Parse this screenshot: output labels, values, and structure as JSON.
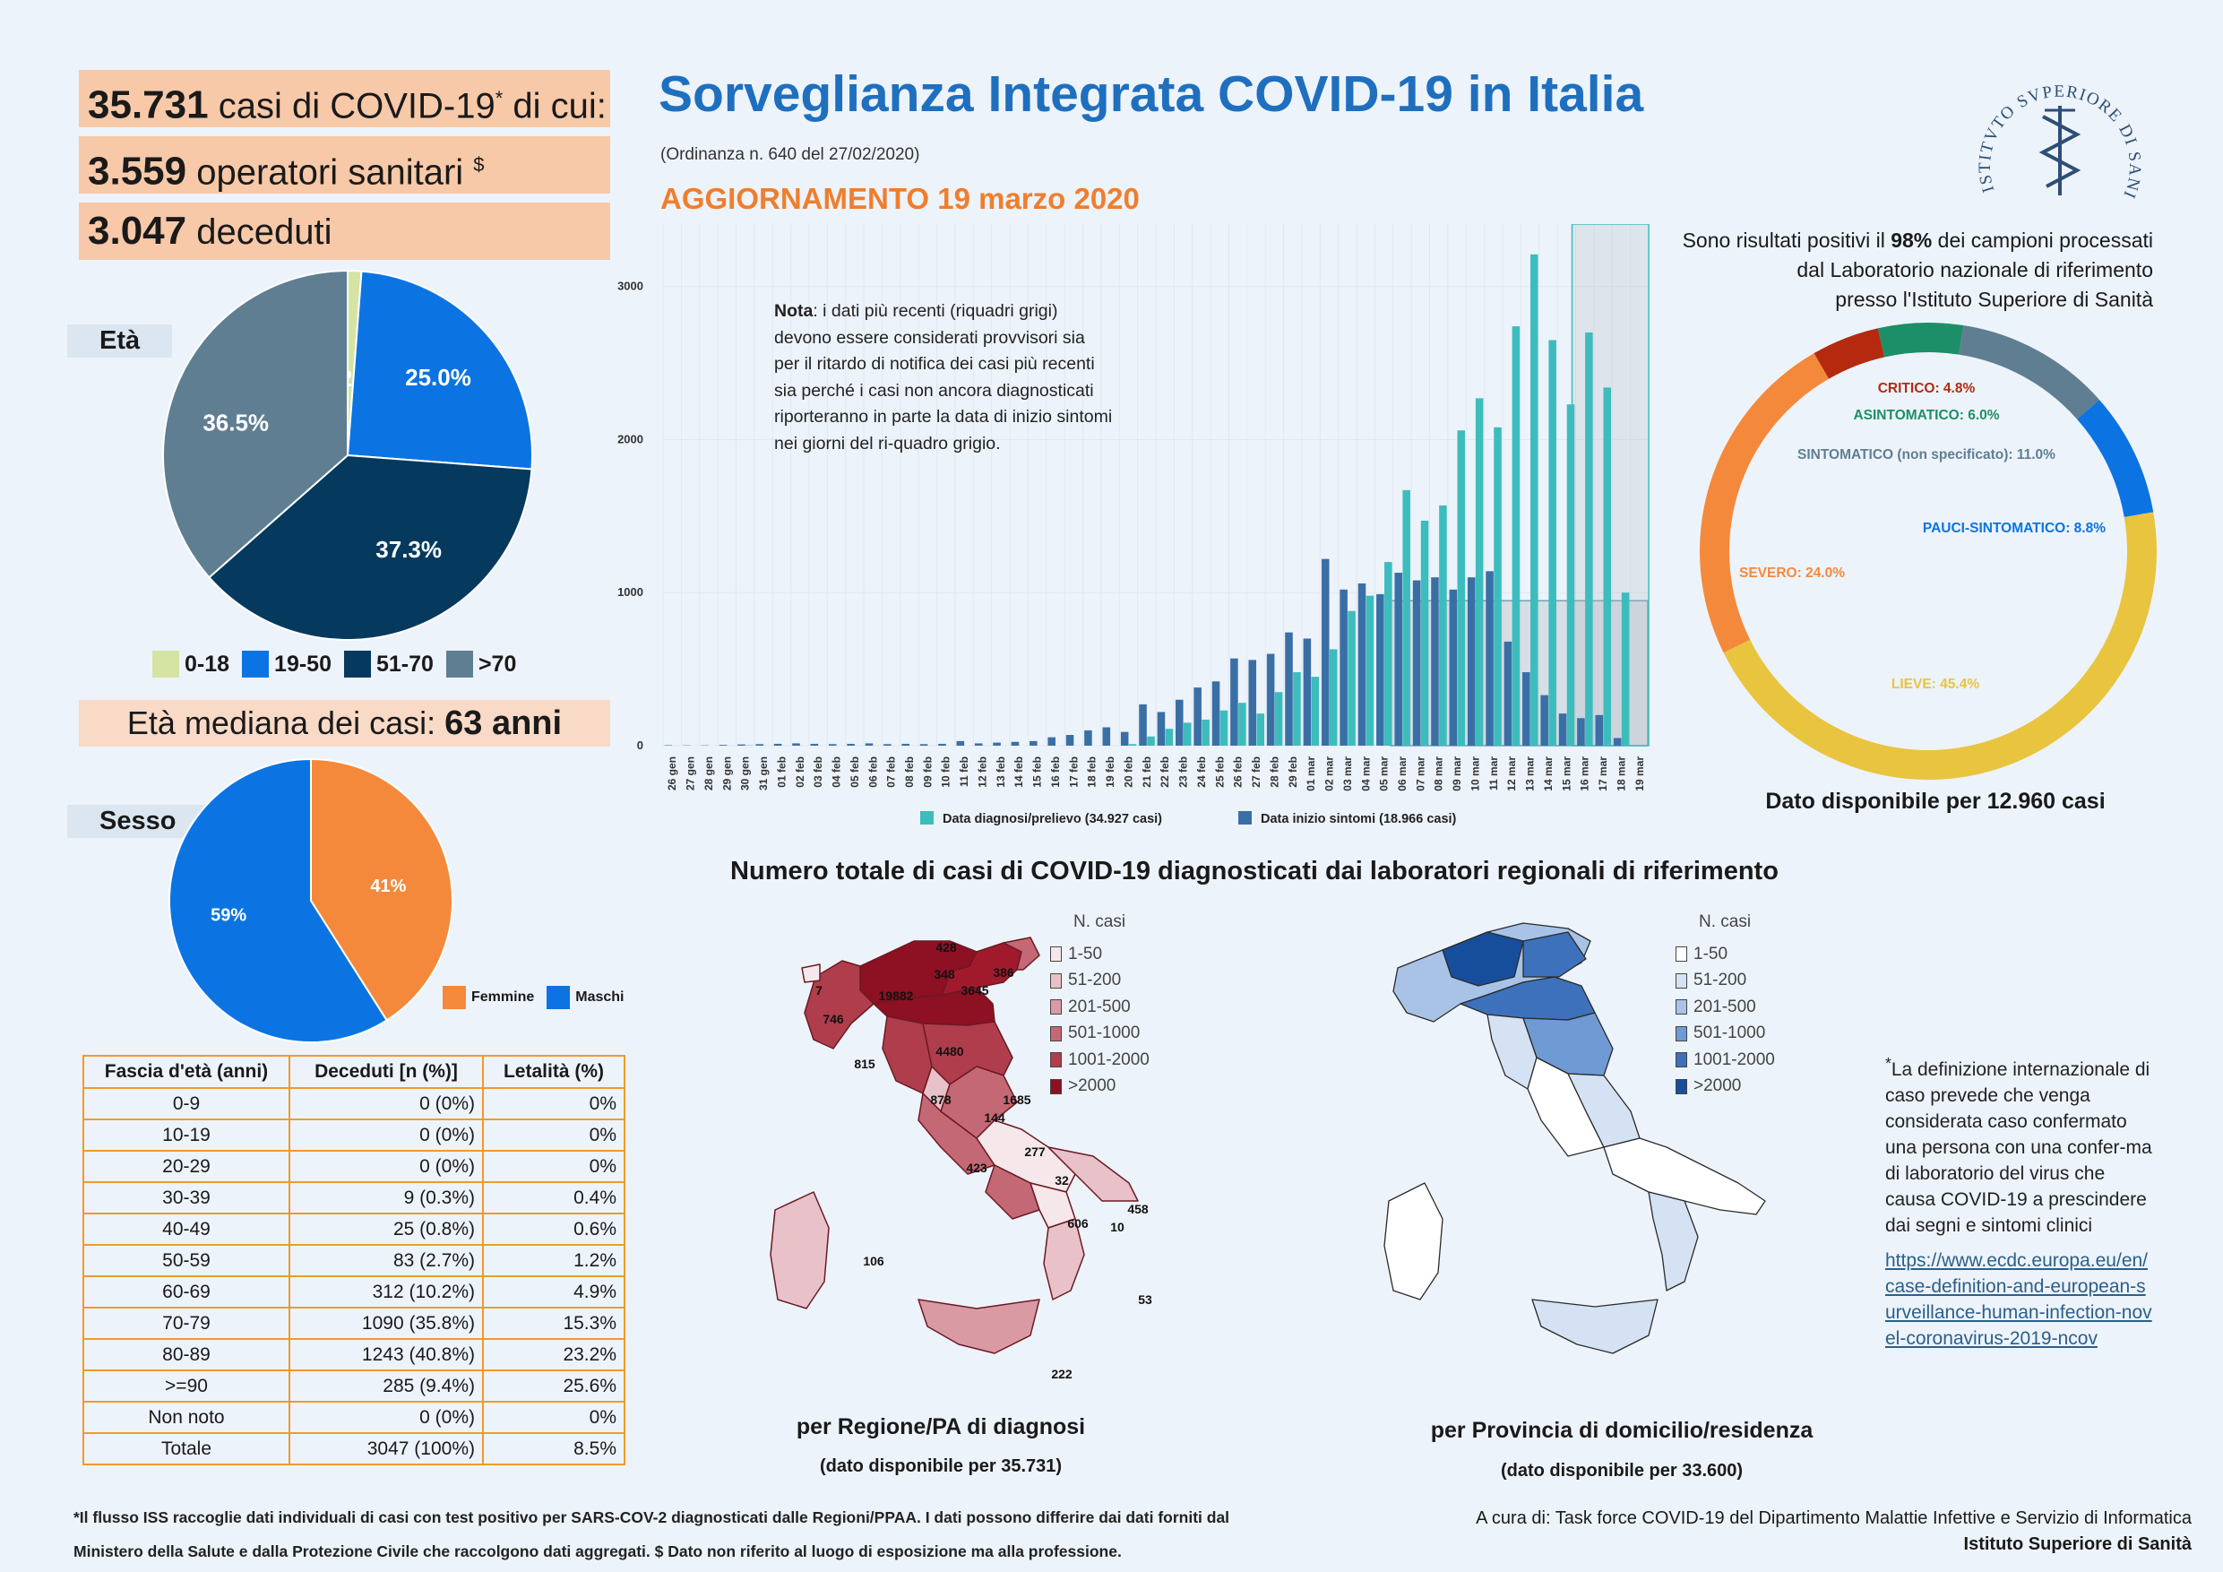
{
  "kpis": {
    "cases": {
      "value": "35.731",
      "label": "casi di COVID-19",
      "sup": "*",
      "tail": " di cui:"
    },
    "health_workers": {
      "value": "3.559",
      "label": "operatori sanitari",
      "sup": "$"
    },
    "deaths": {
      "value": "3.047",
      "label": "deceduti"
    }
  },
  "header": {
    "title": "Sorveglianza Integrata COVID-19 in Italia",
    "ordinance": "(Ordinanza n. 640 del 27/02/2020)",
    "update": "AGGIORNAMENTO 19 marzo 2020"
  },
  "age": {
    "tag": "Età",
    "median_label": "Età mediana dei casi:",
    "median_value": "63 anni"
  },
  "sex": {
    "tag": "Sesso"
  },
  "mortality_table": {
    "headers": [
      "Fascia d'età (anni)",
      "Deceduti [n (%)]",
      "Letalità (%)"
    ],
    "rows": [
      [
        "0-9",
        "0 (0%)",
        "0%"
      ],
      [
        "10-19",
        "0 (0%)",
        "0%"
      ],
      [
        "20-29",
        "0 (0%)",
        "0%"
      ],
      [
        "30-39",
        "9 (0.3%)",
        "0.4%"
      ],
      [
        "40-49",
        "25 (0.8%)",
        "0.6%"
      ],
      [
        "50-59",
        "83 (2.7%)",
        "1.2%"
      ],
      [
        "60-69",
        "312 (10.2%)",
        "4.9%"
      ],
      [
        "70-79",
        "1090 (35.8%)",
        "15.3%"
      ],
      [
        "80-89",
        "1243 (40.8%)",
        "23.2%"
      ],
      [
        ">=90",
        "285 (9.4%)",
        "25.6%"
      ],
      [
        "Non noto",
        "0 (0%)",
        "0%"
      ],
      [
        "Totale",
        "3047 (100%)",
        "8.5%"
      ]
    ]
  },
  "note": {
    "bold": "Nota",
    "text": ": i dati più recenti (riquadri grigi) devono essere considerati provvisori sia per il ritardo di notifica dei casi più recenti sia perché i casi non ancora diagnosticati riporteranno in parte la data di inizio sintomi nei giorni del ri-quadro grigio."
  },
  "lab": {
    "line1a": "Sono risultati positivi il ",
    "pct": "98%",
    "line1b": " dei campioni processati",
    "line2": "dal Laboratorio nazionale di riferimento",
    "line3": "presso l'Istituto Superiore di Sanità"
  },
  "donut_caption": "Dato disponibile per 12.960 casi",
  "maps": {
    "title": "Numero totale di casi di COVID-19 diagnosticati dai laboratori regionali di riferimento",
    "legend_title": "N. casi",
    "legend": [
      "1-50",
      "51-200",
      "201-500",
      "501-1000",
      "1001-2000",
      ">2000"
    ],
    "red_colors": [
      "#f6e8ea",
      "#e8c2c8",
      "#d99aa4",
      "#c56875",
      "#b03d4c",
      "#8d1023"
    ],
    "blue_colors": [
      "#ffffff",
      "#d5e2f3",
      "#a8c3e6",
      "#6f9ad3",
      "#3d71bb",
      "#174e9c"
    ],
    "left_caption": "per Regione/PA di diagnosi",
    "left_sub": "(dato disponibile per 35.731)",
    "right_caption": "per Provincia di domicilio/residenza",
    "right_sub": "(dato disponibile per 33.600)",
    "region_labels": [
      "428",
      "348",
      "386",
      "3645",
      "7",
      "19882",
      "746",
      "4480",
      "815",
      "1685",
      "878",
      "144",
      "277",
      "423",
      "32",
      "458",
      "606",
      "10",
      "106",
      "53",
      "222"
    ]
  },
  "definition": {
    "sup": "*",
    "text": "La definizione internazionale di caso prevede che venga considerata caso confermato una persona con una confer-ma di laboratorio del virus che causa COVID-19 a prescindere dai segni e sintomi clinici",
    "link": "https://www.ecdc.europa.eu/en/case-definition-and-european-surveillance-human-infection-novel-coronavirus-2019-ncov"
  },
  "footer": {
    "line1": "*Il flusso ISS raccoglie dati individuali di casi con test positivo per SARS-COV-2 diagnosticati dalle Regioni/PPAA. I dati possono differire dai dati forniti dal",
    "line2": "Ministero della Salute e dalla Protezione Civile che raccolgono dati aggregati. $ Dato non riferito al luogo di esposizione ma alla professione.",
    "cura_label": "A cura di:  Task force  COVID-19 del Dipartimento Malattie Infettive e Servizio di Informatica",
    "cura_org": "Istituto Superiore di Sanità"
  },
  "logo_text": "ISTITVTO SVPERIORE DI SANITÀ",
  "chart_data": [
    {
      "type": "pie",
      "name": "Età",
      "labels": [
        "0-18",
        "19-50",
        "51-70",
        ">70"
      ],
      "values": [
        1.2,
        25.0,
        37.3,
        36.5
      ],
      "value_labels": [
        "1.2%",
        "25.0%",
        "37.3%",
        "36.5%"
      ],
      "colors": [
        "#d5e3a3",
        "#0b74e2",
        "#053a5e",
        "#5f7e92"
      ],
      "legend_position": "bottom"
    },
    {
      "type": "pie",
      "name": "Sesso",
      "labels": [
        "Femmine",
        "Maschi"
      ],
      "values": [
        41,
        59
      ],
      "value_labels": [
        "41%",
        "59%"
      ],
      "colors": [
        "#f5893b",
        "#0b74e2"
      ],
      "legend_position": "bottom-right"
    },
    {
      "type": "bar",
      "categories": [
        "26 gen",
        "27 gen",
        "28 gen",
        "29 gen",
        "30 gen",
        "31 gen",
        "01 feb",
        "02 feb",
        "03 feb",
        "04 feb",
        "05 feb",
        "06 feb",
        "07 feb",
        "08 feb",
        "09 feb",
        "10 feb",
        "11 feb",
        "12 feb",
        "13 feb",
        "14 feb",
        "15 feb",
        "16 feb",
        "17 feb",
        "18 feb",
        "19 feb",
        "20 feb",
        "21 feb",
        "22 feb",
        "23 feb",
        "24 feb",
        "25 feb",
        "26 feb",
        "27 feb",
        "28 feb",
        "29 feb",
        "01 mar",
        "02 mar",
        "03 mar",
        "04 mar",
        "05 mar",
        "06 mar",
        "07 mar",
        "08 mar",
        "09 mar",
        "10 mar",
        "11 mar",
        "12 mar",
        "13 mar",
        "14 mar",
        "15 mar",
        "16 mar",
        "17 mar",
        "18 mar",
        "19 mar"
      ],
      "series": [
        {
          "name": "Data diagnosi/prelievo (34.927 casi)",
          "color": "#3dbcbd",
          "values": [
            0,
            0,
            0,
            0,
            2,
            0,
            0,
            0,
            0,
            0,
            0,
            0,
            0,
            0,
            0,
            0,
            0,
            0,
            0,
            0,
            0,
            0,
            0,
            0,
            0,
            10,
            60,
            110,
            150,
            170,
            230,
            280,
            210,
            350,
            480,
            450,
            630,
            880,
            980,
            1200,
            1670,
            1470,
            1570,
            2060,
            2270,
            2080,
            2740,
            3210,
            2650,
            2230,
            2700,
            2340,
            1000,
            0
          ]
        },
        {
          "name": "Data inizio sintomi (18.966 casi)",
          "color": "#3a6fa5",
          "values": [
            3,
            2,
            2,
            5,
            8,
            10,
            12,
            15,
            12,
            10,
            12,
            15,
            10,
            12,
            10,
            12,
            30,
            15,
            20,
            25,
            30,
            55,
            70,
            100,
            120,
            90,
            270,
            220,
            300,
            380,
            420,
            570,
            560,
            600,
            740,
            700,
            1220,
            1020,
            1060,
            990,
            1130,
            1080,
            1100,
            1020,
            1100,
            1140,
            680,
            480,
            330,
            210,
            180,
            200,
            50,
            0
          ]
        }
      ],
      "ylim": [
        0,
        3000
      ],
      "y_ticks": [
        "0",
        "1000",
        "2000",
        "3000"
      ],
      "provisional_from": "06 mar",
      "legend_position": "bottom"
    },
    {
      "type": "pie",
      "name": "clinical status",
      "labels": [
        "CRITICO",
        "ASINTOMATICO",
        "SINTOMATICO (non specificato)",
        "PAUCI-SINTOMATICO",
        "LIEVE",
        "SEVERO"
      ],
      "values": [
        4.8,
        6.0,
        11.0,
        8.8,
        45.4,
        24.0
      ],
      "value_labels": [
        "CRITICO: 4.8%",
        "ASINTOMATICO: 6.0%",
        "SINTOMATICO (non specificato): 11.0%",
        "PAUCI-SINTOMATICO: 8.8%",
        "LIEVE: 45.4%",
        "SEVERO: 24.0%"
      ],
      "colors": [
        "#b52a0f",
        "#1c8f68",
        "#5f7e92",
        "#0b74e2",
        "#e9c43f",
        "#f5893b"
      ]
    }
  ]
}
